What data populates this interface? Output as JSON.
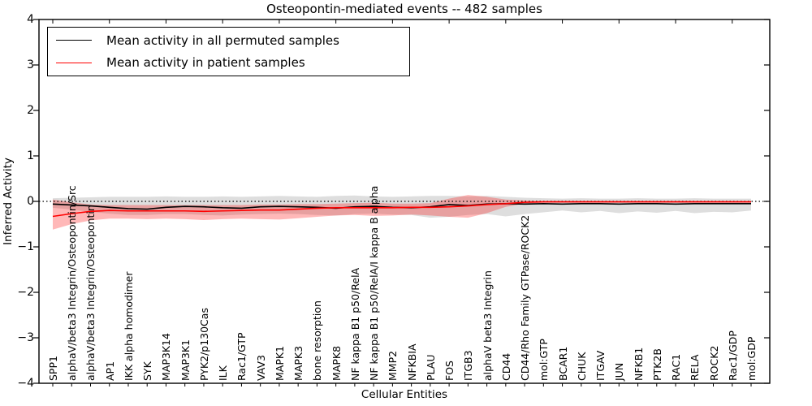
{
  "chart": {
    "title": "Osteopontin-mediated events -- 482 samples",
    "xlabel": "Cellular Entities",
    "ylabel": "Inferred Activity"
  },
  "chart_data": {
    "type": "line",
    "title": "Osteopontin-mediated events -- 482 samples",
    "xlabel": "Cellular Entities",
    "ylabel": "Inferred Activity",
    "ylim": [
      -4,
      4
    ],
    "yticks": [
      4,
      3,
      2,
      1,
      0,
      -1,
      -2,
      -3,
      -4
    ],
    "grid": false,
    "legend_position": "upper left",
    "zero_line": {
      "y": 0,
      "style": "dotted",
      "color": "#000000"
    },
    "categories": [
      "SPP1",
      "alphaV/beta3 Integrin/Osteopontin/Src",
      "alphaV/beta3 Integrin/Osteopontin",
      "AP1",
      "IKK alpha homodimer",
      "SYK",
      "MAP3K14",
      "MAP3K1",
      "PYK2/p130Cas",
      "ILK",
      "Rac1/GTP",
      "VAV3",
      "MAPK1",
      "MAPK3",
      "bone resorption",
      "MAPK8",
      "NF kappa B1 p50/RelA",
      "NF kappa B1 p50/RelA/I kappa B alpha",
      "MMP2",
      "NFKBIA",
      "PLAU",
      "FOS",
      "ITGB3",
      "alphaV beta3 Integrin",
      "CD44",
      "CD44/Rho Family GTPase/ROCK2",
      "mol:GTP",
      "BCAR1",
      "CHUK",
      "ITGAV",
      "JUN",
      "NFKB1",
      "PTK2B",
      "RAC1",
      "RELA",
      "ROCK2",
      "Rac1/GDP",
      "mol:GDP"
    ],
    "series": [
      {
        "name": "Mean activity in all permuted samples",
        "color": "#000000",
        "band_color": "rgba(0,0,0,0.13)",
        "values": [
          -0.06,
          -0.08,
          -0.1,
          -0.13,
          -0.16,
          -0.17,
          -0.13,
          -0.11,
          -0.12,
          -0.14,
          -0.15,
          -0.12,
          -0.11,
          -0.12,
          -0.13,
          -0.15,
          -0.12,
          -0.11,
          -0.13,
          -0.14,
          -0.12,
          -0.07,
          -0.09,
          -0.06,
          -0.05,
          -0.06,
          -0.05,
          -0.06,
          -0.05,
          -0.05,
          -0.06,
          -0.05,
          -0.05,
          -0.06,
          -0.05,
          -0.05,
          -0.05,
          -0.05
        ],
        "band_upper": [
          0.07,
          0.08,
          0.09,
          0.1,
          0.1,
          0.1,
          0.11,
          0.1,
          0.1,
          0.11,
          0.1,
          0.11,
          0.12,
          0.11,
          0.1,
          0.12,
          0.13,
          0.11,
          0.1,
          0.11,
          0.12,
          0.12,
          0.11,
          0.12,
          0.1,
          0.08,
          0.07,
          0.06,
          0.07,
          0.06,
          0.06,
          0.07,
          0.06,
          0.06,
          0.07,
          0.06,
          0.06,
          0.06
        ],
        "band_lower": [
          -0.14,
          -0.18,
          -0.23,
          -0.27,
          -0.3,
          -0.3,
          -0.28,
          -0.28,
          -0.3,
          -0.31,
          -0.29,
          -0.28,
          -0.27,
          -0.28,
          -0.3,
          -0.31,
          -0.28,
          -0.27,
          -0.29,
          -0.3,
          -0.36,
          -0.34,
          -0.3,
          -0.28,
          -0.33,
          -0.28,
          -0.24,
          -0.2,
          -0.24,
          -0.21,
          -0.26,
          -0.22,
          -0.25,
          -0.21,
          -0.26,
          -0.23,
          -0.24,
          -0.2
        ]
      },
      {
        "name": "Mean activity in patient samples",
        "color": "#ff0000",
        "band_color": "rgba(255,0,0,0.28)",
        "values": [
          -0.33,
          -0.27,
          -0.22,
          -0.2,
          -0.21,
          -0.21,
          -0.21,
          -0.21,
          -0.22,
          -0.21,
          -0.2,
          -0.19,
          -0.19,
          -0.17,
          -0.15,
          -0.14,
          -0.14,
          -0.14,
          -0.14,
          -0.13,
          -0.13,
          -0.12,
          -0.1,
          -0.07,
          -0.05,
          -0.02,
          -0.01,
          -0.01,
          -0.01,
          -0.01,
          -0.01,
          -0.01,
          -0.01,
          -0.01,
          -0.01,
          -0.01,
          -0.01,
          -0.01
        ],
        "band_upper": [
          0.04,
          -0.02,
          -0.07,
          -0.08,
          -0.08,
          -0.08,
          -0.08,
          -0.08,
          -0.08,
          -0.08,
          -0.08,
          -0.07,
          -0.07,
          -0.06,
          -0.06,
          -0.05,
          -0.04,
          -0.03,
          -0.05,
          -0.05,
          -0.04,
          0.06,
          0.14,
          0.1,
          0.04,
          0.02,
          0.01,
          0.01,
          0.01,
          0.01,
          0.01,
          0.01,
          0.01,
          0.01,
          0.01,
          0.01,
          0.01,
          0.01
        ],
        "band_lower": [
          -0.62,
          -0.5,
          -0.42,
          -0.38,
          -0.38,
          -0.39,
          -0.38,
          -0.39,
          -0.41,
          -0.39,
          -0.38,
          -0.39,
          -0.4,
          -0.37,
          -0.34,
          -0.31,
          -0.3,
          -0.32,
          -0.31,
          -0.29,
          -0.31,
          -0.34,
          -0.36,
          -0.26,
          -0.12,
          -0.05,
          -0.03,
          -0.03,
          -0.03,
          -0.03,
          -0.03,
          -0.03,
          -0.03,
          -0.03,
          -0.03,
          -0.03,
          -0.03,
          -0.03
        ]
      }
    ]
  }
}
